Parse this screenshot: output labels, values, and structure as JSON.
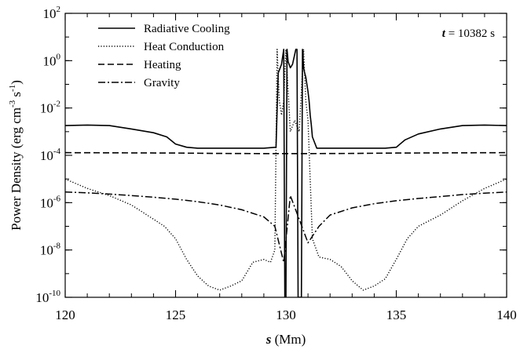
{
  "chart_data": {
    "type": "line",
    "y_scale": "log",
    "xlim": [
      120,
      140
    ],
    "ylim": [
      1e-10,
      100
    ],
    "x_ticks": [
      "120",
      "125",
      "130",
      "135",
      "140"
    ],
    "x_tick_values": [
      120,
      125,
      130,
      135,
      140
    ],
    "y_tick_values": [
      1e-10,
      1e-08,
      1e-06,
      0.0001,
      0.01,
      1,
      100
    ],
    "y_tick_exponents": [
      "-10",
      "-8",
      "-6",
      "-4",
      "-2",
      "0",
      "2"
    ],
    "y_tick_base": "10",
    "xlabel_symbol": "s",
    "xlabel_unit": " (Mm)",
    "ylabel_prefix": "Power Density (erg cm",
    "ylabel_exp1": "-3",
    "ylabel_mid": " s",
    "ylabel_exp2": "-1",
    "ylabel_suffix": ")",
    "annotation": {
      "symbol": "t",
      "text": " = 10382 s"
    },
    "legend_position": "top-left",
    "grid": false,
    "series": [
      {
        "name": "Radiative Cooling",
        "style": "solid",
        "x": [
          120,
          121,
          122,
          123,
          124,
          124.6,
          125,
          125.5,
          126,
          127,
          128,
          129,
          129.55,
          129.65,
          129.8,
          129.9,
          129.95,
          130.0,
          130.05,
          130.1,
          130.2,
          130.3,
          130.45,
          130.5,
          130.55,
          130.7,
          130.75,
          130.8,
          130.85,
          130.9,
          130.95,
          131.0,
          131.05,
          131.1,
          131.15,
          131.2,
          131.4,
          132,
          133,
          134,
          134.5,
          135,
          135.4,
          136,
          137,
          138,
          139,
          140
        ],
        "y": [
          0.0018,
          0.0019,
          0.0018,
          0.0013,
          0.0009,
          0.0006,
          0.0003,
          0.00022,
          0.0002,
          0.0002,
          0.0002,
          0.0002,
          0.00022,
          0.3,
          0.7,
          3,
          1e-10,
          1e-10,
          3,
          0.9,
          0.5,
          0.7,
          3,
          3,
          1e-10,
          1e-10,
          3,
          0.5,
          0.3,
          0.2,
          0.1,
          0.05,
          0.02,
          0.005,
          0.002,
          0.0006,
          0.0002,
          0.0002,
          0.0002,
          0.0002,
          0.0002,
          0.00022,
          0.00045,
          0.0008,
          0.0013,
          0.0018,
          0.0019,
          0.0018
        ]
      },
      {
        "name": "Heat Conduction",
        "style": "dotted",
        "x": [
          120,
          121,
          122,
          123,
          124,
          124.5,
          125,
          125.5,
          126,
          126.5,
          127,
          127.5,
          128,
          128.5,
          129,
          129.3,
          129.5,
          129.6,
          129.7,
          129.8,
          129.9,
          130.0,
          130.2,
          130.4,
          130.6,
          130.8,
          130.9,
          131.0,
          131.2,
          131.5,
          132,
          132.5,
          133,
          133.5,
          134,
          134.5,
          135,
          135.5,
          136,
          137,
          138,
          139,
          140
        ],
        "y": [
          1e-05,
          4e-06,
          2e-06,
          8e-07,
          2e-07,
          1e-07,
          3e-08,
          4e-09,
          8e-10,
          3e-10,
          2e-10,
          3e-10,
          5e-10,
          3e-09,
          4e-09,
          3e-09,
          1e-08,
          3,
          0.02,
          0.005,
          0.02,
          3,
          0.001,
          0.003,
          0.001,
          3,
          0.02,
          0.003,
          3e-08,
          5e-09,
          4e-09,
          2e-09,
          5e-10,
          2e-10,
          3e-10,
          6e-10,
          4e-09,
          3e-08,
          1e-07,
          3e-07,
          1.2e-06,
          4e-06,
          1e-05
        ]
      },
      {
        "name": "Heating",
        "style": "dashed",
        "x": [
          120,
          122,
          125,
          127,
          129,
          130,
          131,
          133,
          135,
          138,
          140
        ],
        "y": [
          0.00013,
          0.000128,
          0.000125,
          0.00012,
          0.000118,
          0.000118,
          0.000118,
          0.00012,
          0.000125,
          0.000128,
          0.00013
        ]
      },
      {
        "name": "Gravity",
        "style": "dashdot",
        "x": [
          120,
          121,
          122,
          123,
          124,
          125,
          126,
          127,
          128,
          129,
          129.5,
          129.9,
          130.2,
          130.6,
          131,
          131.5,
          132,
          133,
          134,
          135,
          136,
          137,
          138,
          139,
          140
        ],
        "y": [
          2.8e-06,
          2.6e-06,
          2.3e-06,
          2e-06,
          1.7e-06,
          1.4e-06,
          1.1e-06,
          8e-07,
          5e-07,
          2.5e-07,
          1e-07,
          3e-09,
          2e-06,
          2e-07,
          2e-08,
          1e-07,
          3e-07,
          6e-07,
          9e-07,
          1.2e-06,
          1.5e-06,
          1.8e-06,
          2.2e-06,
          2.5e-06,
          2.8e-06
        ]
      }
    ]
  }
}
